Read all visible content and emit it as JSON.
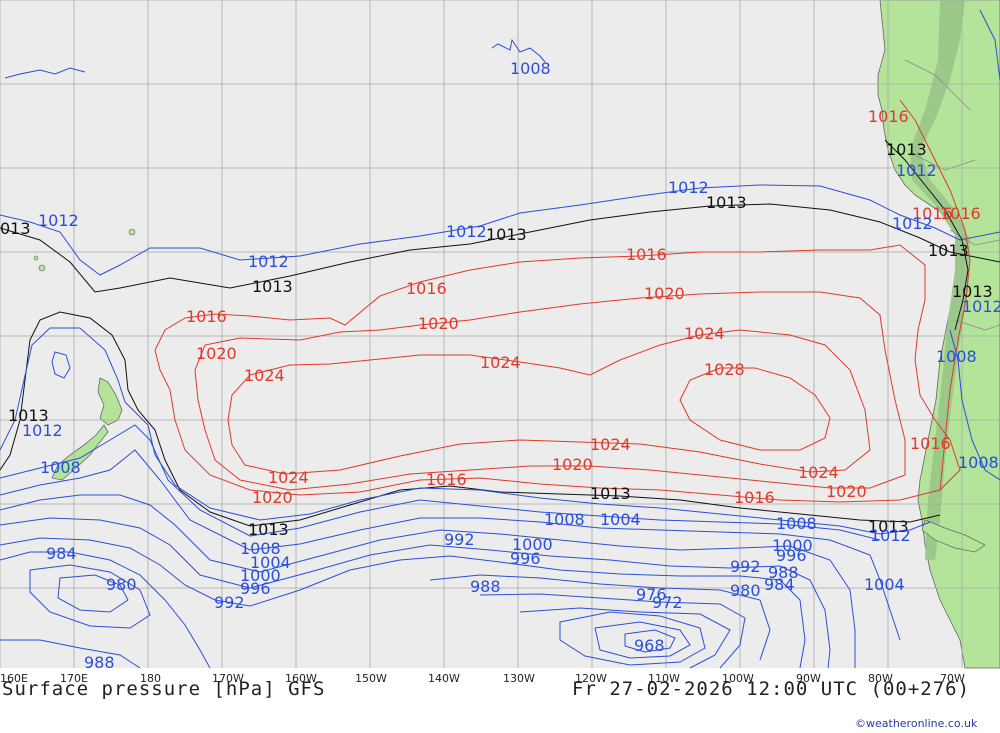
{
  "map": {
    "title": "Surface pressure [hPa] GFS",
    "valid_time": "Fr 27-02-2026 12:00 UTC (00+276)",
    "credit": "©weatheronline.co.uk",
    "colors": {
      "ocean": "#ececec",
      "land": "#b4e39a",
      "grid": "#a9a9a9",
      "low_isobar": "#2b4fd8",
      "high_isobar": "#e03a2a",
      "standard_isobar": "#111111",
      "border": "#8a8a8a"
    },
    "longitude_labels": [
      "160E",
      "170E",
      "180",
      "170W",
      "160W",
      "150W",
      "140W",
      "130W",
      "120W",
      "110W",
      "100W",
      "90W",
      "80W",
      "70W"
    ],
    "isobar_labels": [
      {
        "text": "1008",
        "kind": "lo"
      },
      {
        "text": "1012",
        "kind": "lo"
      },
      {
        "text": "013",
        "kind": "mid"
      },
      {
        "text": "1012",
        "kind": "lo"
      },
      {
        "text": "1013",
        "kind": "mid"
      },
      {
        "text": "1012",
        "kind": "lo"
      },
      {
        "text": "1013",
        "kind": "mid"
      },
      {
        "text": "1012",
        "kind": "lo"
      },
      {
        "text": "1013",
        "kind": "mid"
      },
      {
        "text": "1016",
        "kind": "hi"
      },
      {
        "text": "1016",
        "kind": "hi"
      },
      {
        "text": "1016",
        "kind": "hi"
      },
      {
        "text": "1020",
        "kind": "hi"
      },
      {
        "text": "1020",
        "kind": "hi"
      },
      {
        "text": "1020",
        "kind": "hi"
      },
      {
        "text": "1024",
        "kind": "hi"
      },
      {
        "text": "1024",
        "kind": "hi"
      },
      {
        "text": "1024",
        "kind": "hi"
      },
      {
        "text": "1028",
        "kind": "hi"
      },
      {
        "text": "1024",
        "kind": "hi"
      },
      {
        "text": "1024",
        "kind": "hi"
      },
      {
        "text": "1020",
        "kind": "hi"
      },
      {
        "text": "1020",
        "kind": "hi"
      },
      {
        "text": "1020",
        "kind": "hi"
      },
      {
        "text": "1024",
        "kind": "hi"
      },
      {
        "text": "1016",
        "kind": "hi"
      },
      {
        "text": "1016",
        "kind": "hi"
      },
      {
        "text": "1013",
        "kind": "mid"
      },
      {
        "text": "1013",
        "kind": "mid"
      },
      {
        "text": "1013",
        "kind": "mid"
      },
      {
        "text": "1013",
        "kind": "mid"
      },
      {
        "text": "1012",
        "kind": "lo"
      },
      {
        "text": "1008",
        "kind": "lo"
      },
      {
        "text": "1008",
        "kind": "lo"
      },
      {
        "text": "1004",
        "kind": "lo"
      },
      {
        "text": "1008",
        "kind": "lo"
      },
      {
        "text": "1008",
        "kind": "lo"
      },
      {
        "text": "1004",
        "kind": "lo"
      },
      {
        "text": "1000",
        "kind": "lo"
      },
      {
        "text": "996",
        "kind": "lo"
      },
      {
        "text": "992",
        "kind": "lo"
      },
      {
        "text": "984",
        "kind": "lo"
      },
      {
        "text": "980",
        "kind": "lo"
      },
      {
        "text": "988",
        "kind": "lo"
      },
      {
        "text": "992",
        "kind": "lo"
      },
      {
        "text": "1000",
        "kind": "lo"
      },
      {
        "text": "996",
        "kind": "lo"
      },
      {
        "text": "988",
        "kind": "lo"
      },
      {
        "text": "976",
        "kind": "lo"
      },
      {
        "text": "972",
        "kind": "lo"
      },
      {
        "text": "968",
        "kind": "lo"
      },
      {
        "text": "980",
        "kind": "lo"
      },
      {
        "text": "992",
        "kind": "lo"
      },
      {
        "text": "988",
        "kind": "lo"
      },
      {
        "text": "984",
        "kind": "lo"
      },
      {
        "text": "1000",
        "kind": "lo"
      },
      {
        "text": "996",
        "kind": "lo"
      },
      {
        "text": "1004",
        "kind": "lo"
      },
      {
        "text": "1012",
        "kind": "lo"
      },
      {
        "text": "1016",
        "kind": "hi"
      },
      {
        "text": "1013",
        "kind": "mid"
      },
      {
        "text": "1012",
        "kind": "lo"
      },
      {
        "text": "1016",
        "kind": "hi"
      },
      {
        "text": "1012",
        "kind": "lo"
      },
      {
        "text": "1016",
        "kind": "hi"
      },
      {
        "text": "1013",
        "kind": "mid"
      },
      {
        "text": "1013",
        "kind": "mid"
      },
      {
        "text": "1012",
        "kind": "lo"
      },
      {
        "text": "1008",
        "kind": "lo"
      },
      {
        "text": "1016",
        "kind": "hi"
      },
      {
        "text": "1008",
        "kind": "lo"
      }
    ]
  }
}
